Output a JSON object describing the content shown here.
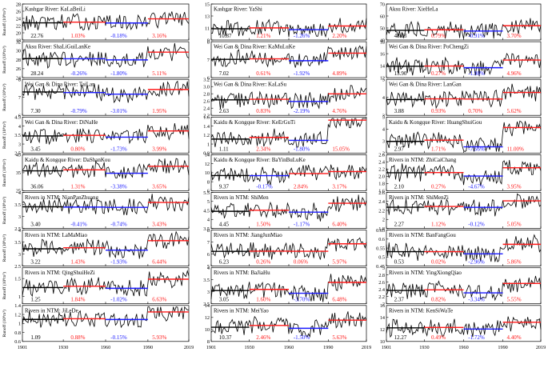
{
  "figure": {
    "x_ticks": [
      "1901",
      "1930",
      "1960",
      "1990",
      "2019"
    ],
    "ylabel_html": "Runoff (10⁸m³)",
    "colors": {
      "series": "#000000",
      "base_period": "#000000",
      "period_decrease": "#1a1aff",
      "period_increase": "#ff1a1a"
    }
  },
  "chart_data": [
    {
      "type": "line",
      "title": "Kashgar River: KaLaBeiLi",
      "ylabel": "Runoff (10⁸m³)",
      "ylim": [
        18,
        28
      ],
      "yticks": [
        "18",
        "20",
        "22",
        "24",
        "26",
        "28"
      ],
      "base_mean": "22.76",
      "base_mean_value": 22.76,
      "p1": "1.03%",
      "p2": "-0.18%",
      "p3": "3.16%"
    },
    {
      "type": "line",
      "title": "Kashgar River: YaShi",
      "ylim": [
        9,
        15
      ],
      "yticks": [
        "9",
        "11",
        "13",
        "15"
      ],
      "base_mean": "10.87",
      "base_mean_value": 10.87,
      "p1": "1.21%",
      "p2": "-1.26%",
      "p3": "2.20%"
    },
    {
      "type": "line",
      "title": "Aksu River: XieHeLa",
      "ylim": [
        40,
        70
      ],
      "yticks": [
        "40",
        "50",
        "60",
        "70"
      ],
      "base_mean": "48.03",
      "base_mean_value": 48.03,
      "p1": "0.79%",
      "p2": "-0.91%",
      "p3": "3.70%"
    },
    {
      "type": "line",
      "title": "Aksu River: ShaLiGuiLanKe",
      "ylabel": "Runoff (10⁸m³)",
      "ylim": [
        24,
        32
      ],
      "yticks": [
        "24",
        "26",
        "28",
        "30",
        "32"
      ],
      "base_mean": "28.24",
      "base_mean_value": 28.24,
      "p1": "-0.26%",
      "p2": "-1.80%",
      "p3": "5.11%"
    },
    {
      "type": "line",
      "title": "Wei Gan & Dina River: KaMuLuKe",
      "ylim": [
        6,
        8
      ],
      "yticks": [
        "6",
        "7",
        "8"
      ],
      "base_mean": "7.02",
      "base_mean_value": 7.02,
      "p1": "0.61%",
      "p2": "-1.92%",
      "p3": "4.89%"
    },
    {
      "type": "line",
      "title": "Wei Gan & Dina River: PoChengZi",
      "ylim": [
        12,
        18
      ],
      "yticks": [
        "12",
        "14",
        "16",
        "18"
      ],
      "base_mean": "13.90",
      "base_mean_value": 13.9,
      "p1": "0.27%",
      "p2": "-1.98%",
      "p3": "4.96%"
    },
    {
      "type": "line",
      "title": "Wei Gan & Dina River: TaiLan",
      "ylabel": "Runoff (10⁸m³)",
      "ylim": [
        6,
        8
      ],
      "yticks": [
        "6",
        "7",
        "8"
      ],
      "base_mean": "7.30",
      "base_mean_value": 7.3,
      "p1": "-0.79%",
      "p2": "-3.01%",
      "p3": "1.95%"
    },
    {
      "type": "line",
      "title": "Wei Gan & Dina River: KaLaSu",
      "ylim": [
        2.2,
        3.2
      ],
      "yticks": [
        "2.2",
        "2.4",
        "2.6",
        "2.8",
        "3.0",
        "3.2"
      ],
      "base_mean": "2.63",
      "base_mean_value": 2.63,
      "p1": "0.83%",
      "p2": "-2.19%",
      "p3": "4.76%"
    },
    {
      "type": "line",
      "title": "Wei Gan & Dina River: LanGan",
      "ylim": [
        3,
        5
      ],
      "yticks": [
        "3",
        "4",
        "5"
      ],
      "base_mean": "3.88",
      "base_mean_value": 3.88,
      "p1": "0.93%",
      "p2": "0.70%",
      "p3": "5.62%"
    },
    {
      "type": "line",
      "title": "Wei Gan & Dina River: DiNaHe",
      "ylabel": "Runoff (10⁸m³)",
      "ylim": [
        2.5,
        4.5
      ],
      "yticks": [
        "2.5",
        "3",
        "3.5",
        "4",
        "4.5"
      ],
      "base_mean": "3.45",
      "base_mean_value": 3.45,
      "p1": "0.80%",
      "p2": "-1.73%",
      "p3": "3.99%"
    },
    {
      "type": "line",
      "title": "Kaidu & Kongque River: KeErGuTi",
      "ylim": [
        0.8,
        1.6
      ],
      "yticks": [
        "0.8",
        "1",
        "1.2",
        "1.4",
        "1.6"
      ],
      "base_mean": "1.11",
      "base_mean_value": 1.11,
      "p1": "2.34%",
      "p2": "-1.80%",
      "p3": "15.05%"
    },
    {
      "type": "line",
      "title": "Kaidu & Kongque River: HuangShuiGou",
      "ylim": [
        2,
        5
      ],
      "yticks": [
        "2",
        "3",
        "4",
        "5"
      ],
      "base_mean": "2.97",
      "base_mean_value": 2.97,
      "p1": "1.71%",
      "p2": "-7.56%",
      "p3": "11.00%"
    },
    {
      "type": "line",
      "title": "Kaidu & Kongque River: DaShanKou",
      "ylabel": "Runoff (10⁸m³)",
      "ylim": [
        25,
        45
      ],
      "yticks": [
        "25",
        "35",
        "45"
      ],
      "base_mean": "36.06",
      "base_mean_value": 36.06,
      "p1": "1.31%",
      "p2": "-3.38%",
      "p3": "3.65%"
    },
    {
      "type": "line",
      "title": "Kaidu & Kongque River: BaYinBuLuKe",
      "ylim": [
        6,
        14
      ],
      "yticks": [
        "6",
        "8",
        "10",
        "12",
        "14"
      ],
      "base_mean": "9.37",
      "base_mean_value": 9.37,
      "p1": "-0.17%",
      "p2": "2.84%",
      "p3": "3.17%"
    },
    {
      "type": "line",
      "title": "Rivers in NTM: ZhiCaiChang",
      "ylim": [
        1.6,
        2.6
      ],
      "yticks": [
        "1.6",
        "1.8",
        "2.0",
        "2.2",
        "2.4",
        "2.6"
      ],
      "base_mean": "2.10",
      "base_mean_value": 2.1,
      "p1": "0.27%",
      "p2": "-4.67%",
      "p3": "3.95%"
    },
    {
      "type": "line",
      "title": "Rivers in NTM: NianPanZhuang",
      "ylabel": "Runoff (10⁸m³)",
      "ylim": [
        2.5,
        4
      ],
      "yticks": [
        "2.5",
        "3",
        "3.5",
        "4"
      ],
      "base_mean": "3.40",
      "base_mean_value": 3.4,
      "p1": "-0.41%",
      "p2": "-0.74%",
      "p3": "3.43%"
    },
    {
      "type": "line",
      "title": "Rivers in NTM: ShiMen",
      "ylim": [
        3.5,
        5.5
      ],
      "yticks": [
        "3.5",
        "4",
        "4.5",
        "5",
        "5.5"
      ],
      "base_mean": "4.45",
      "base_mean_value": 4.45,
      "p1": "1.50%",
      "p2": "-1.17%",
      "p3": "6.40%"
    },
    {
      "type": "line",
      "title": "Rivers in NTM: ShiMenZi",
      "ylim": [
        1.8,
        2.6
      ],
      "yticks": [
        "1.8",
        "2",
        "2.2",
        "2.4",
        "2.6"
      ],
      "base_mean": "2.27",
      "base_mean_value": 2.27,
      "p1": "1.12%",
      "p2": "-0.12%",
      "p3": "5.05%"
    },
    {
      "type": "line",
      "title": "Rivers in NTM: LaMaMiao",
      "ylabel": "Runoff (10⁸m³)",
      "ylim": [
        2.5,
        4
      ],
      "yticks": [
        "2.5",
        "3",
        "3.5",
        "4"
      ],
      "base_mean": "3.22",
      "base_mean_value": 3.22,
      "p1": "1.43%",
      "p2": "-1.93%",
      "p3": "6.44%"
    },
    {
      "type": "line",
      "title": "Rivers in NTM: JiangJunMiao",
      "ylim": [
        5,
        8
      ],
      "yticks": [
        "5",
        "6",
        "7",
        "8"
      ],
      "base_mean": "6.23",
      "base_mean_value": 6.23,
      "p1": "0.26%",
      "p2": "0.06%",
      "p3": "5.97%"
    },
    {
      "type": "line",
      "title": "Rivers in NTM: BanFangGou",
      "ylim": [
        0.45,
        0.65
      ],
      "yticks": [
        "0.45",
        "0.5",
        "0.55",
        "0.6",
        "0.65"
      ],
      "base_mean": "0.53",
      "base_mean_value": 0.53,
      "p1": "0.02%",
      "p2": "-2.96%",
      "p3": "5.86%"
    },
    {
      "type": "line",
      "title": "Rivers in NTM: QingShuiHeZi",
      "ylabel": "Runoff (10⁸m³)",
      "ylim": [
        0.8,
        1.8
      ],
      "yticks": [
        "1",
        "1.5"
      ],
      "base_mean": "1.25",
      "base_mean_value": 1.25,
      "p1": "1.84%",
      "p2": "-1.02%",
      "p3": "6.63%"
    },
    {
      "type": "line",
      "title": "Rivers in NTM: BaJiaHu",
      "ylim": [
        2.5,
        4
      ],
      "yticks": [
        "2.5",
        "3",
        "3.5",
        "4"
      ],
      "base_mean": "3.05",
      "base_mean_value": 3.05,
      "p1": "1.60%",
      "p2": "-3.70%",
      "p3": "6.48%"
    },
    {
      "type": "line",
      "title": "Rivers in NTM: YingXiongQiao",
      "ylim": [
        2,
        3
      ],
      "yticks": [
        "2",
        "2.2",
        "2.4",
        "2.6",
        "2.8",
        "3"
      ],
      "base_mean": "2.37",
      "base_mean_value": 2.37,
      "p1": "0.82%",
      "p2": "-3.34%",
      "p3": "5.55%"
    },
    {
      "type": "line",
      "title": "Rivers in NTM: JiLeDe",
      "ylabel": "Runoff (10⁸m³)",
      "ylim": [
        0.6,
        1.4
      ],
      "yticks": [
        "0.6",
        "0.8",
        "1",
        "1.2",
        "1.4"
      ],
      "base_mean": "1.09",
      "base_mean_value": 1.09,
      "p1": "0.88%",
      "p2": "-0.15%",
      "p3": "5.93%"
    },
    {
      "type": "line",
      "title": "Rivers in NTM: MeiYao",
      "ylim": [
        8,
        14
      ],
      "yticks": [
        "8",
        "10",
        "12",
        "14"
      ],
      "base_mean": "10.37",
      "base_mean_value": 10.37,
      "p1": "2.46%",
      "p2": "-1.50%",
      "p3": "5.63%"
    },
    {
      "type": "line",
      "title": "Rivers in NTM: KenSiWaTe",
      "ylim": [
        10,
        16
      ],
      "yticks": [
        "10",
        "12",
        "14",
        "16"
      ],
      "base_mean": "12.27",
      "base_mean_value": 12.27,
      "p1": "0.49%",
      "p2": "-1.72%",
      "p3": "4.40%"
    }
  ]
}
